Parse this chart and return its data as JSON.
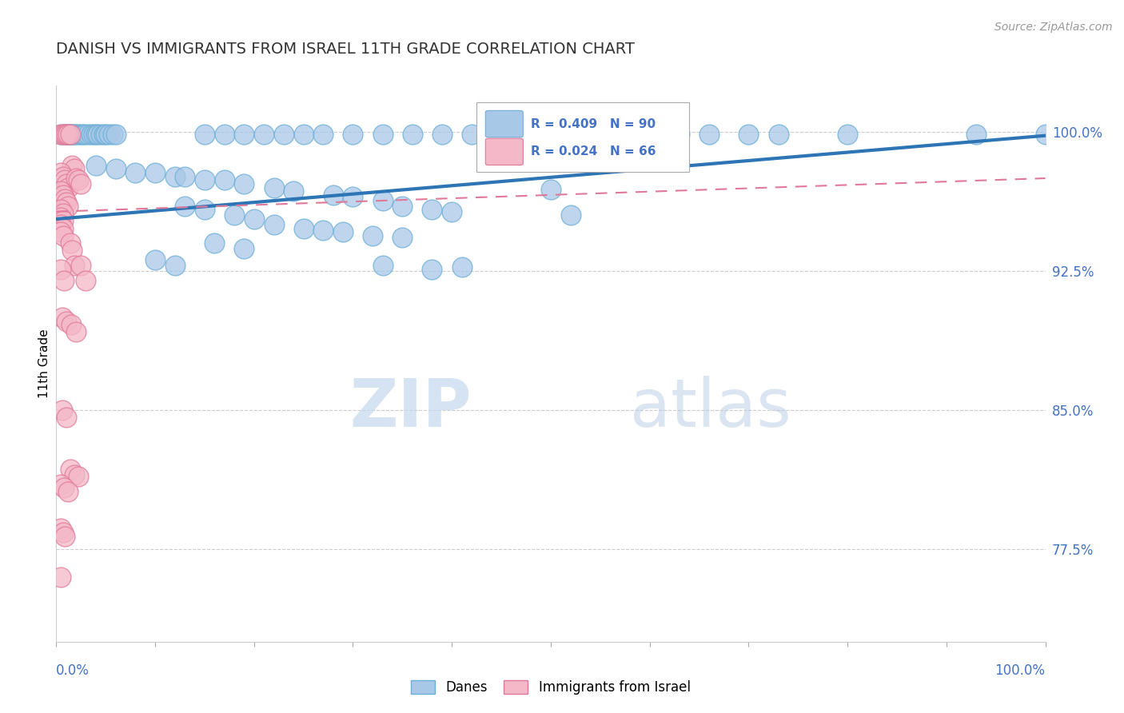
{
  "title": "DANISH VS IMMIGRANTS FROM ISRAEL 11TH GRADE CORRELATION CHART",
  "source": "Source: ZipAtlas.com",
  "ylabel": "11th Grade",
  "xlim": [
    0.0,
    1.0
  ],
  "ylim": [
    0.725,
    1.025
  ],
  "yticks": [
    0.775,
    0.85,
    0.925,
    1.0
  ],
  "ytick_labels": [
    "77.5%",
    "85.0%",
    "92.5%",
    "100.0%"
  ],
  "danes_color": "#A8C8E8",
  "danes_edge_color": "#6BAED6",
  "israel_color": "#F4B8C8",
  "israel_edge_color": "#E07898",
  "danes_R": 0.409,
  "danes_N": 90,
  "israel_R": 0.024,
  "israel_N": 66,
  "danes_line_color": "#2E75B6",
  "israel_line_color": "#E07898",
  "danes_line_y0": 0.953,
  "danes_line_y1": 0.998,
  "israel_line_y0": 0.957,
  "israel_line_y1": 0.975,
  "watermark_zip": "ZIP",
  "watermark_atlas": "atlas",
  "danes_scatter": [
    [
      0.005,
      0.9985
    ],
    [
      0.008,
      0.9985
    ],
    [
      0.01,
      0.9985
    ],
    [
      0.012,
      0.9985
    ],
    [
      0.013,
      0.9985
    ],
    [
      0.014,
      0.9985
    ],
    [
      0.015,
      0.9985
    ],
    [
      0.016,
      0.9985
    ],
    [
      0.018,
      0.9985
    ],
    [
      0.02,
      0.9985
    ],
    [
      0.022,
      0.9985
    ],
    [
      0.025,
      0.9985
    ],
    [
      0.027,
      0.9985
    ],
    [
      0.029,
      0.9985
    ],
    [
      0.032,
      0.9985
    ],
    [
      0.035,
      0.9985
    ],
    [
      0.038,
      0.9985
    ],
    [
      0.04,
      0.9985
    ],
    [
      0.042,
      0.9985
    ],
    [
      0.045,
      0.9985
    ],
    [
      0.048,
      0.9985
    ],
    [
      0.05,
      0.9985
    ],
    [
      0.053,
      0.9985
    ],
    [
      0.057,
      0.9985
    ],
    [
      0.06,
      0.9985
    ],
    [
      0.15,
      0.9985
    ],
    [
      0.17,
      0.9985
    ],
    [
      0.19,
      0.9985
    ],
    [
      0.21,
      0.9985
    ],
    [
      0.23,
      0.9985
    ],
    [
      0.25,
      0.9985
    ],
    [
      0.27,
      0.9985
    ],
    [
      0.3,
      0.9985
    ],
    [
      0.33,
      0.9985
    ],
    [
      0.36,
      0.9985
    ],
    [
      0.39,
      0.9985
    ],
    [
      0.42,
      0.9985
    ],
    [
      0.6,
      0.9985
    ],
    [
      0.63,
      0.9985
    ],
    [
      0.66,
      0.9985
    ],
    [
      0.7,
      0.9985
    ],
    [
      0.73,
      0.9985
    ],
    [
      0.8,
      0.9985
    ],
    [
      0.93,
      0.9985
    ],
    [
      1.0,
      0.9985
    ],
    [
      0.04,
      0.982
    ],
    [
      0.06,
      0.98
    ],
    [
      0.08,
      0.978
    ],
    [
      0.1,
      0.978
    ],
    [
      0.12,
      0.976
    ],
    [
      0.13,
      0.976
    ],
    [
      0.15,
      0.974
    ],
    [
      0.17,
      0.974
    ],
    [
      0.19,
      0.972
    ],
    [
      0.22,
      0.97
    ],
    [
      0.24,
      0.968
    ],
    [
      0.28,
      0.966
    ],
    [
      0.3,
      0.965
    ],
    [
      0.33,
      0.963
    ],
    [
      0.35,
      0.96
    ],
    [
      0.38,
      0.958
    ],
    [
      0.4,
      0.957
    ],
    [
      0.13,
      0.96
    ],
    [
      0.15,
      0.958
    ],
    [
      0.18,
      0.955
    ],
    [
      0.2,
      0.953
    ],
    [
      0.22,
      0.95
    ],
    [
      0.25,
      0.948
    ],
    [
      0.27,
      0.947
    ],
    [
      0.29,
      0.946
    ],
    [
      0.32,
      0.944
    ],
    [
      0.35,
      0.943
    ],
    [
      0.16,
      0.94
    ],
    [
      0.19,
      0.937
    ],
    [
      0.5,
      0.969
    ],
    [
      0.52,
      0.955
    ],
    [
      0.1,
      0.931
    ],
    [
      0.12,
      0.928
    ],
    [
      0.33,
      0.928
    ],
    [
      0.38,
      0.926
    ],
    [
      0.41,
      0.927
    ]
  ],
  "israel_scatter": [
    [
      0.005,
      0.9985
    ],
    [
      0.007,
      0.9985
    ],
    [
      0.009,
      0.9985
    ],
    [
      0.01,
      0.9985
    ],
    [
      0.012,
      0.9985
    ],
    [
      0.014,
      0.9985
    ],
    [
      0.016,
      0.982
    ],
    [
      0.018,
      0.98
    ],
    [
      0.005,
      0.978
    ],
    [
      0.007,
      0.976
    ],
    [
      0.009,
      0.974
    ],
    [
      0.01,
      0.972
    ],
    [
      0.012,
      0.97
    ],
    [
      0.005,
      0.968
    ],
    [
      0.007,
      0.966
    ],
    [
      0.009,
      0.964
    ],
    [
      0.01,
      0.962
    ],
    [
      0.012,
      0.96
    ],
    [
      0.005,
      0.958
    ],
    [
      0.007,
      0.956
    ],
    [
      0.005,
      0.954
    ],
    [
      0.007,
      0.952
    ],
    [
      0.005,
      0.95
    ],
    [
      0.007,
      0.948
    ],
    [
      0.005,
      0.946
    ],
    [
      0.007,
      0.944
    ],
    [
      0.02,
      0.975
    ],
    [
      0.022,
      0.974
    ],
    [
      0.025,
      0.972
    ],
    [
      0.014,
      0.94
    ],
    [
      0.016,
      0.936
    ],
    [
      0.018,
      0.928
    ],
    [
      0.025,
      0.928
    ],
    [
      0.005,
      0.926
    ],
    [
      0.03,
      0.92
    ],
    [
      0.008,
      0.92
    ],
    [
      0.006,
      0.9
    ],
    [
      0.01,
      0.898
    ],
    [
      0.015,
      0.896
    ],
    [
      0.02,
      0.892
    ],
    [
      0.006,
      0.85
    ],
    [
      0.01,
      0.846
    ],
    [
      0.014,
      0.818
    ],
    [
      0.018,
      0.815
    ],
    [
      0.022,
      0.814
    ],
    [
      0.005,
      0.81
    ],
    [
      0.008,
      0.808
    ],
    [
      0.012,
      0.806
    ],
    [
      0.005,
      0.786
    ],
    [
      0.007,
      0.784
    ],
    [
      0.009,
      0.782
    ],
    [
      0.005,
      0.76
    ]
  ]
}
